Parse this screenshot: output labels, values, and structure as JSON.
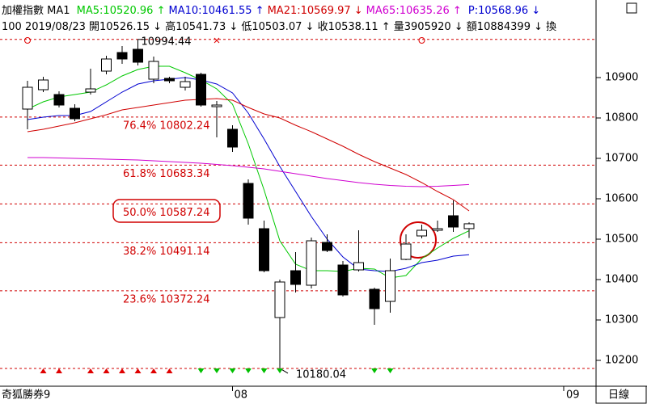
{
  "chart_data": {
    "type": "candlestick",
    "title": "加權指數 MA1",
    "info_bar": "100 2019/08/23 開10526.15 ↓ 高10541.73 ↓ 低10503.07 ↓ 收10538.11 ↑ 量3905920 ↓ 額10884399 ↓ 換",
    "categories": [
      null,
      null,
      null,
      null,
      null,
      null,
      null,
      null,
      null,
      null,
      null,
      null,
      null,
      "08",
      null,
      null,
      null,
      null,
      null,
      null,
      null,
      null,
      null,
      null,
      null,
      null,
      null,
      null,
      null
    ],
    "extra_x_label": "09",
    "open": [
      10822,
      10870,
      10858,
      10824,
      10864,
      10916,
      10962,
      10970,
      10896,
      10898,
      10876,
      10908,
      10828,
      10772,
      10638,
      10526,
      10306,
      10422,
      10386,
      10492,
      10436,
      10424,
      10376,
      10346,
      10450,
      10508,
      10522,
      10558,
      10526.15
    ],
    "high": [
      10892,
      10902,
      10866,
      10834,
      10922,
      10954,
      10978,
      10994.44,
      10952,
      10902,
      10902,
      10912,
      10842,
      10782,
      10648,
      10546,
      10400,
      10468,
      10504,
      10512,
      10446,
      10522,
      10380,
      10452,
      10512,
      10536,
      10546,
      10596,
      10541.73
    ],
    "low": [
      10772,
      10864,
      10826,
      10792,
      10858,
      10908,
      10934,
      10930,
      10886,
      10886,
      10868,
      10828,
      10752,
      10716,
      10536,
      10418,
      10180.04,
      10368,
      10378,
      10468,
      10358,
      10420,
      10288,
      10318,
      10448,
      10502,
      10518,
      10518,
      10503.07
    ],
    "close": [
      10876,
      10894,
      10832,
      10798,
      10872,
      10946,
      10946,
      10938,
      10940,
      10892,
      10890,
      10832,
      10832,
      10728,
      10552,
      10422,
      10394,
      10388,
      10496,
      10472,
      10362,
      10442,
      10328,
      10422,
      10488,
      10522,
      10526,
      10530,
      10538.11
    ],
    "candle_color": "#000000",
    "series": [
      {
        "name": "MA5:10520.96 ↑",
        "color": "#00c800",
        "values": [
          10822,
          10840,
          10852,
          10858,
          10864,
          10882,
          10904,
          10920,
          10928,
          10928,
          10912,
          10894,
          10872,
          10834,
          10736,
          10622,
          10496,
          10438,
          10422,
          10422,
          10420,
          10428,
          10426,
          10404,
          10410,
          10452,
          10478,
          10502,
          10520.96
        ]
      },
      {
        "name": "MA10:10461.55 ↑",
        "color": "#0000d0",
        "values": [
          10796,
          10802,
          10806,
          10806,
          10816,
          10840,
          10864,
          10884,
          10892,
          10896,
          10900,
          10894,
          10884,
          10862,
          10812,
          10748,
          10680,
          10618,
          10556,
          10500,
          10456,
          10426,
          10422,
          10420,
          10428,
          10442,
          10448,
          10458,
          10461.55
        ]
      },
      {
        "name": "MA21:10569.97 ↓",
        "color": "#d00000",
        "values": [
          10766,
          10772,
          10780,
          10788,
          10798,
          10808,
          10820,
          10826,
          10832,
          10838,
          10844,
          10846,
          10848,
          10844,
          10826,
          10810,
          10800,
          10782,
          10766,
          10748,
          10730,
          10710,
          10692,
          10676,
          10660,
          10640,
          10618,
          10598,
          10569.97
        ]
      },
      {
        "name": "MA65:10635.26 ↑",
        "color": "#d000d0",
        "values": [
          10702,
          10702,
          10701,
          10700,
          10699,
          10698,
          10697,
          10696,
          10694,
          10692,
          10690,
          10688,
          10685,
          10682,
          10678,
          10674,
          10668,
          10662,
          10656,
          10650,
          10645,
          10640,
          10636,
          10633,
          10631,
          10630,
          10631,
          10633,
          10635.26
        ]
      }
    ],
    "p_label": "P:10568.96 ↓",
    "p_color": "#0000d0",
    "ylim": [
      10136,
      11052
    ],
    "yticks": [
      10200,
      10300,
      10400,
      10500,
      10600,
      10700,
      10800,
      10900
    ],
    "fib_color": "#d00000",
    "fib_levels": [
      {
        "value": 10802.24,
        "label": "76.4% 10802.24"
      },
      {
        "value": 10683.34,
        "label": "61.8% 10683.34"
      },
      {
        "value": 10587.24,
        "label": "50.0% 10587.24"
      },
      {
        "value": 10491.14,
        "label": "38.2% 10491.14"
      },
      {
        "value": 10372.24,
        "label": "23.6% 10372.24"
      }
    ],
    "high_mark": 10994.44,
    "low_mark": 10180.04,
    "footer_left": "奇狐勝券9",
    "footer_right": "日線"
  }
}
